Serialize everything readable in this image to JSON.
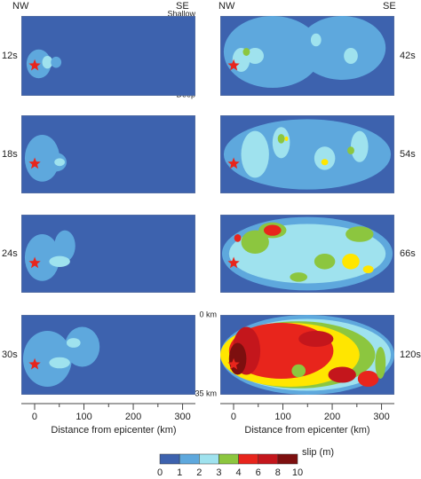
{
  "figure": {
    "panels": [
      {
        "time": "12s"
      },
      {
        "time": "18s"
      },
      {
        "time": "24s"
      },
      {
        "time": "30s"
      },
      {
        "time": "42s"
      },
      {
        "time": "54s"
      },
      {
        "time": "66s"
      },
      {
        "time": "120s"
      }
    ],
    "direction_left": "NW",
    "direction_right": "SE",
    "depth_top": "Shallow",
    "depth_bottom": "Deep",
    "depth_top_km": "0 km",
    "depth_bottom_km": "35 km",
    "x_axis": {
      "label": "Distance from epicenter (km)",
      "xlim": [
        -27,
        326
      ],
      "xticks": [
        0,
        100,
        200,
        300
      ]
    },
    "colorbar": {
      "label": "slip (m)",
      "ticks": [
        0,
        1,
        2,
        3,
        4,
        6,
        8,
        10
      ],
      "colors": [
        "#3d62ae",
        "#5ea8dd",
        "#9fe2ee",
        "#8cc63f",
        "#e8251c",
        "#c4161c",
        "#7d0f0f"
      ]
    }
  }
}
